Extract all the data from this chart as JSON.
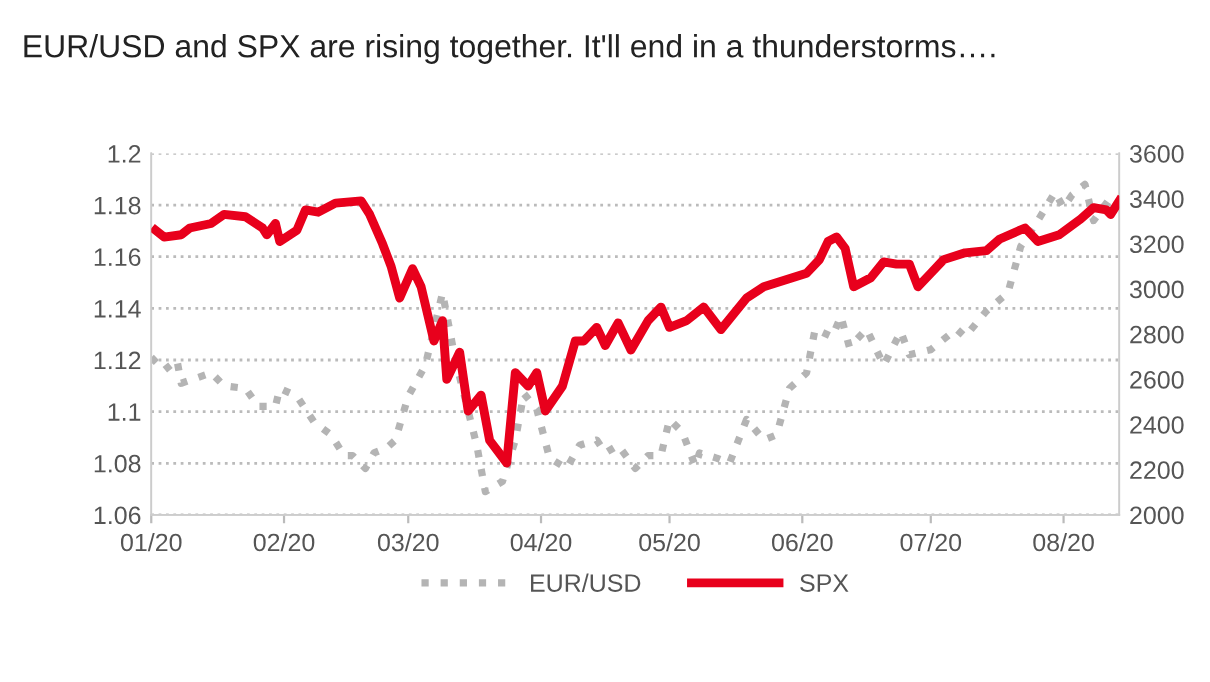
{
  "chart_data": {
    "type": "line",
    "title": "EUR/USD and SPX are rising together. It'll end in a thunderstorms….",
    "xlim": [
      "2020-01-01",
      "2020-08-14"
    ],
    "xticks": [
      {
        "value": "2020-01-01",
        "label": "01/20"
      },
      {
        "value": "2020-02-01",
        "label": "02/20"
      },
      {
        "value": "2020-03-01",
        "label": "03/20"
      },
      {
        "value": "2020-04-01",
        "label": "04/20"
      },
      {
        "value": "2020-05-01",
        "label": "05/20"
      },
      {
        "value": "2020-06-01",
        "label": "06/20"
      },
      {
        "value": "2020-07-01",
        "label": "07/20"
      },
      {
        "value": "2020-08-01",
        "label": "08/20"
      }
    ],
    "ylim": [
      1.06,
      1.2
    ],
    "yticks": [
      1.06,
      1.08,
      {
        "value": 1.1,
        "label": "1.1"
      },
      1.12,
      1.14,
      1.16,
      1.18,
      {
        "value": 1.2,
        "label": "1.2"
      }
    ],
    "y2lim": [
      2000,
      3600
    ],
    "y2ticks": [
      2000,
      2200,
      2400,
      2600,
      2800,
      3000,
      3200,
      3400,
      3600
    ],
    "grid": "y",
    "legend": "bottom",
    "marker": "none",
    "series": [
      {
        "name": "EUR/USD",
        "color": "#b4b4b4",
        "axis": "y",
        "line_style": "dotted",
        "x": [
          "2020-01-01",
          "2020-01-04",
          "2020-01-07",
          "2020-01-08",
          "2020-01-15",
          "2020-01-18",
          "2020-01-23",
          "2020-01-26",
          "2020-01-30",
          "2020-01-31",
          "2020-02-04",
          "2020-02-08",
          "2020-02-12",
          "2020-02-15",
          "2020-02-17",
          "2020-02-20",
          "2020-02-22",
          "2020-02-25",
          "2020-02-27",
          "2020-03-01",
          "2020-03-05",
          "2020-03-09",
          "2020-03-12",
          "2020-03-17",
          "2020-03-19",
          "2020-03-23",
          "2020-03-26",
          "2020-03-28",
          "2020-03-31",
          "2020-04-03",
          "2020-04-07",
          "2020-04-10",
          "2020-04-14",
          "2020-04-16",
          "2020-04-19",
          "2020-04-23",
          "2020-04-26",
          "2020-04-29",
          "2020-05-01",
          "2020-05-04",
          "2020-05-07",
          "2020-05-08",
          "2020-05-12",
          "2020-05-15",
          "2020-05-19",
          "2020-05-23",
          "2020-05-26",
          "2020-05-29",
          "2020-06-02",
          "2020-06-04",
          "2020-06-08",
          "2020-06-10",
          "2020-06-12",
          "2020-06-16",
          "2020-06-20",
          "2020-06-24",
          "2020-06-26",
          "2020-07-01",
          "2020-07-07",
          "2020-07-09",
          "2020-07-14",
          "2020-07-19",
          "2020-07-22",
          "2020-07-26",
          "2020-07-30",
          "2020-08-01",
          "2020-08-03",
          "2020-08-06",
          "2020-08-08",
          "2020-08-12"
        ],
        "values": [
          1.121,
          1.116,
          1.12,
          1.111,
          1.115,
          1.11,
          1.109,
          1.102,
          1.102,
          1.109,
          1.106,
          1.096,
          1.091,
          1.083,
          1.083,
          1.078,
          1.084,
          1.086,
          1.089,
          1.106,
          1.118,
          1.146,
          1.12,
          1.087,
          1.069,
          1.073,
          1.089,
          1.107,
          1.101,
          1.082,
          1.078,
          1.087,
          1.089,
          1.084,
          1.087,
          1.078,
          1.083,
          1.083,
          1.097,
          1.092,
          1.079,
          1.084,
          1.082,
          1.08,
          1.097,
          1.089,
          1.091,
          1.109,
          1.115,
          1.132,
          1.129,
          1.137,
          1.125,
          1.132,
          1.118,
          1.131,
          1.122,
          1.124,
          1.132,
          1.129,
          1.139,
          1.146,
          1.164,
          1.174,
          1.185,
          1.179,
          1.184,
          1.188,
          1.174,
          1.183
        ]
      },
      {
        "name": "SPX",
        "color": "#e8001c",
        "axis": "y2",
        "line_style": "solid",
        "x": [
          "2020-01-02",
          "2020-01-04",
          "2020-01-08",
          "2020-01-10",
          "2020-01-15",
          "2020-01-18",
          "2020-01-23",
          "2020-01-27",
          "2020-01-28",
          "2020-01-30",
          "2020-01-31",
          "2020-02-04",
          "2020-02-06",
          "2020-02-09",
          "2020-02-13",
          "2020-02-19",
          "2020-02-21",
          "2020-02-24",
          "2020-02-26",
          "2020-02-28",
          "2020-03-02",
          "2020-03-04",
          "2020-03-07",
          "2020-03-09",
          "2020-03-10",
          "2020-03-13",
          "2020-03-15",
          "2020-03-18",
          "2020-03-20",
          "2020-03-24",
          "2020-03-26",
          "2020-03-29",
          "2020-03-31",
          "2020-04-02",
          "2020-04-06",
          "2020-04-09",
          "2020-04-11",
          "2020-04-14",
          "2020-04-16",
          "2020-04-19",
          "2020-04-22",
          "2020-04-26",
          "2020-04-29",
          "2020-05-01",
          "2020-05-05",
          "2020-05-09",
          "2020-05-13",
          "2020-05-19",
          "2020-05-23",
          "2020-05-28",
          "2020-06-02",
          "2020-06-05",
          "2020-06-07",
          "2020-06-09",
          "2020-06-11",
          "2020-06-13",
          "2020-06-17",
          "2020-06-20",
          "2020-06-23",
          "2020-06-26",
          "2020-06-28",
          "2020-07-01",
          "2020-07-04",
          "2020-07-09",
          "2020-07-14",
          "2020-07-17",
          "2020-07-23",
          "2020-07-26",
          "2020-07-31",
          "2020-08-05",
          "2020-08-08",
          "2020-08-11",
          "2020-08-12",
          "2020-08-14"
        ],
        "values": [
          3260,
          3230,
          3240,
          3270,
          3290,
          3330,
          3320,
          3270,
          3240,
          3290,
          3210,
          3260,
          3350,
          3340,
          3380,
          3390,
          3330,
          3200,
          3100,
          2960,
          3090,
          3010,
          2770,
          2860,
          2600,
          2720,
          2460,
          2530,
          2330,
          2230,
          2630,
          2570,
          2630,
          2460,
          2570,
          2770,
          2770,
          2830,
          2750,
          2850,
          2730,
          2860,
          2920,
          2830,
          2860,
          2920,
          2820,
          2960,
          3010,
          3040,
          3070,
          3130,
          3210,
          3230,
          3180,
          3010,
          3050,
          3120,
          3110,
          3110,
          3010,
          3070,
          3130,
          3160,
          3170,
          3220,
          3270,
          3210,
          3240,
          3310,
          3360,
          3350,
          3330,
          3390
        ]
      }
    ]
  }
}
